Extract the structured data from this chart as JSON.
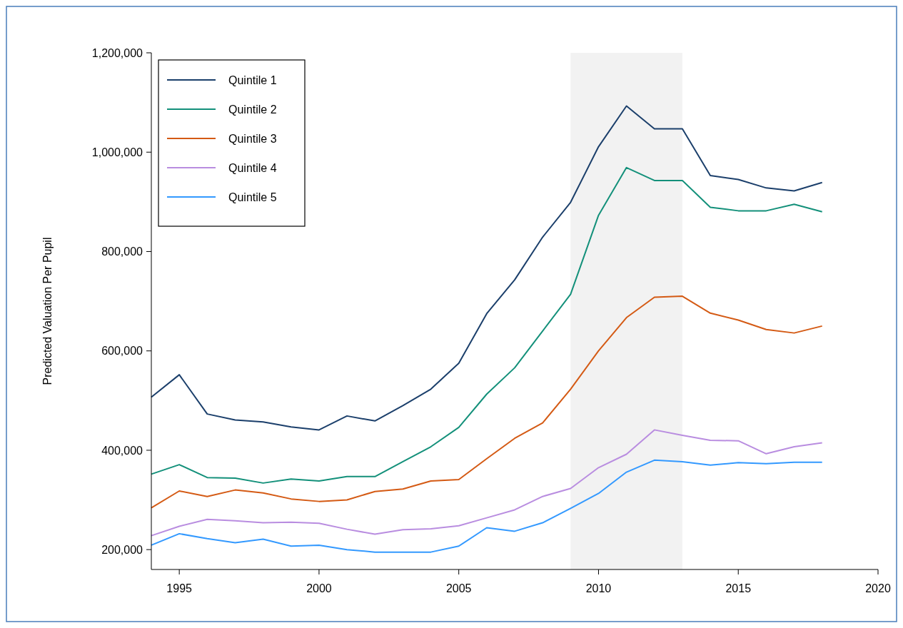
{
  "chart_data": {
    "type": "line",
    "ylabel": "Predicted Valuation Per Pupil",
    "x": [
      1994,
      1995,
      1996,
      1997,
      1998,
      1999,
      2000,
      2001,
      2002,
      2003,
      2004,
      2005,
      2006,
      2007,
      2008,
      2009,
      2010,
      2011,
      2012,
      2013,
      2014,
      2015,
      2016,
      2017,
      2018
    ],
    "series": [
      {
        "name": "Quintile 1",
        "color": "#1b3f6b",
        "values": [
          507000,
          552000,
          473000,
          461000,
          457000,
          447000,
          441000,
          469000,
          459000,
          490000,
          523000,
          575000,
          675000,
          743000,
          829000,
          899000,
          1011000,
          1093000,
          1047000,
          1047000,
          953000,
          945000,
          928000,
          922000,
          939000
        ]
      },
      {
        "name": "Quintile 2",
        "color": "#13907a",
        "values": [
          352000,
          371000,
          345000,
          344000,
          334000,
          342000,
          338000,
          347000,
          347000,
          377000,
          407000,
          446000,
          513000,
          566000,
          640000,
          714000,
          873000,
          969000,
          943000,
          943000,
          889000,
          882000,
          882000,
          895000,
          880000
        ]
      },
      {
        "name": "Quintile 3",
        "color": "#d45a14",
        "values": [
          284000,
          318000,
          307000,
          320000,
          314000,
          302000,
          297000,
          300000,
          317000,
          322000,
          338000,
          341000,
          383000,
          424000,
          455000,
          523000,
          600000,
          667000,
          708000,
          710000,
          676000,
          662000,
          643000,
          636000,
          650000
        ]
      },
      {
        "name": "Quintile 4",
        "color": "#b98de0",
        "values": [
          228000,
          247000,
          261000,
          258000,
          254000,
          255000,
          253000,
          241000,
          231000,
          240000,
          242000,
          248000,
          264000,
          280000,
          307000,
          323000,
          365000,
          392000,
          441000,
          430000,
          420000,
          419000,
          393000,
          407000,
          415000
        ]
      },
      {
        "name": "Quintile 5",
        "color": "#3399ff",
        "values": [
          209000,
          232000,
          222000,
          214000,
          221000,
          207000,
          209000,
          200000,
          195000,
          195000,
          195000,
          207000,
          244000,
          237000,
          254000,
          283000,
          313000,
          356000,
          380000,
          377000,
          370000,
          375000,
          373000,
          376000,
          376000
        ]
      }
    ],
    "xlim": [
      1994,
      2020
    ],
    "xticks": [
      1995,
      2000,
      2005,
      2010,
      2015,
      2020
    ],
    "ylim": [
      160000,
      1200000
    ],
    "yticks": [
      {
        "value": 200000,
        "label": "200,000"
      },
      {
        "value": 400000,
        "label": "400,000"
      },
      {
        "value": 600000,
        "label": "600,000"
      },
      {
        "value": 800000,
        "label": "800,000"
      },
      {
        "value": 1000000,
        "label": "1,000,000"
      },
      {
        "value": 1200000,
        "label": "1,200,000"
      }
    ],
    "bands": [
      {
        "axis": "x",
        "from": 2009,
        "to": 2013,
        "color": "#f2f2f2"
      }
    ],
    "legend": "top left",
    "grid": false,
    "line_style": "solid",
    "marker": "none"
  }
}
